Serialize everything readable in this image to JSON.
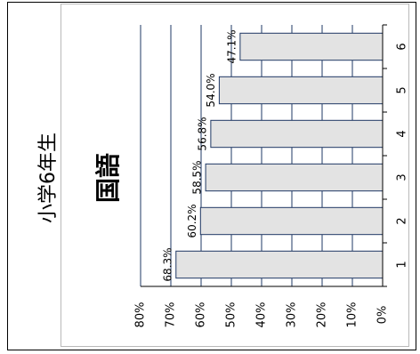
{
  "labels": {
    "grade": "小学6年生",
    "subject": "国語"
  },
  "colors": {
    "bar_fill": "#e3e3e3",
    "bar_stroke": "#1f3864",
    "gridline": "#1f3864"
  },
  "chart_data": {
    "type": "bar",
    "orientation": "horizontal",
    "title": "",
    "xlabel": "",
    "ylabel": "",
    "categories": [
      "1",
      "2",
      "3",
      "4",
      "5",
      "6"
    ],
    "values": [
      68.3,
      60.2,
      58.5,
      56.8,
      54.0,
      47.1
    ],
    "data_labels": [
      "68.3%",
      "60.2%",
      "58.5%",
      "56.8%",
      "54.0%",
      "47.1%"
    ],
    "value_axis": {
      "min": 0,
      "max": 80,
      "ticks": [
        "0%",
        "10%",
        "20%",
        "30%",
        "40%",
        "50%",
        "60%",
        "70%",
        "80%"
      ]
    },
    "grid": true,
    "legend": "none"
  }
}
